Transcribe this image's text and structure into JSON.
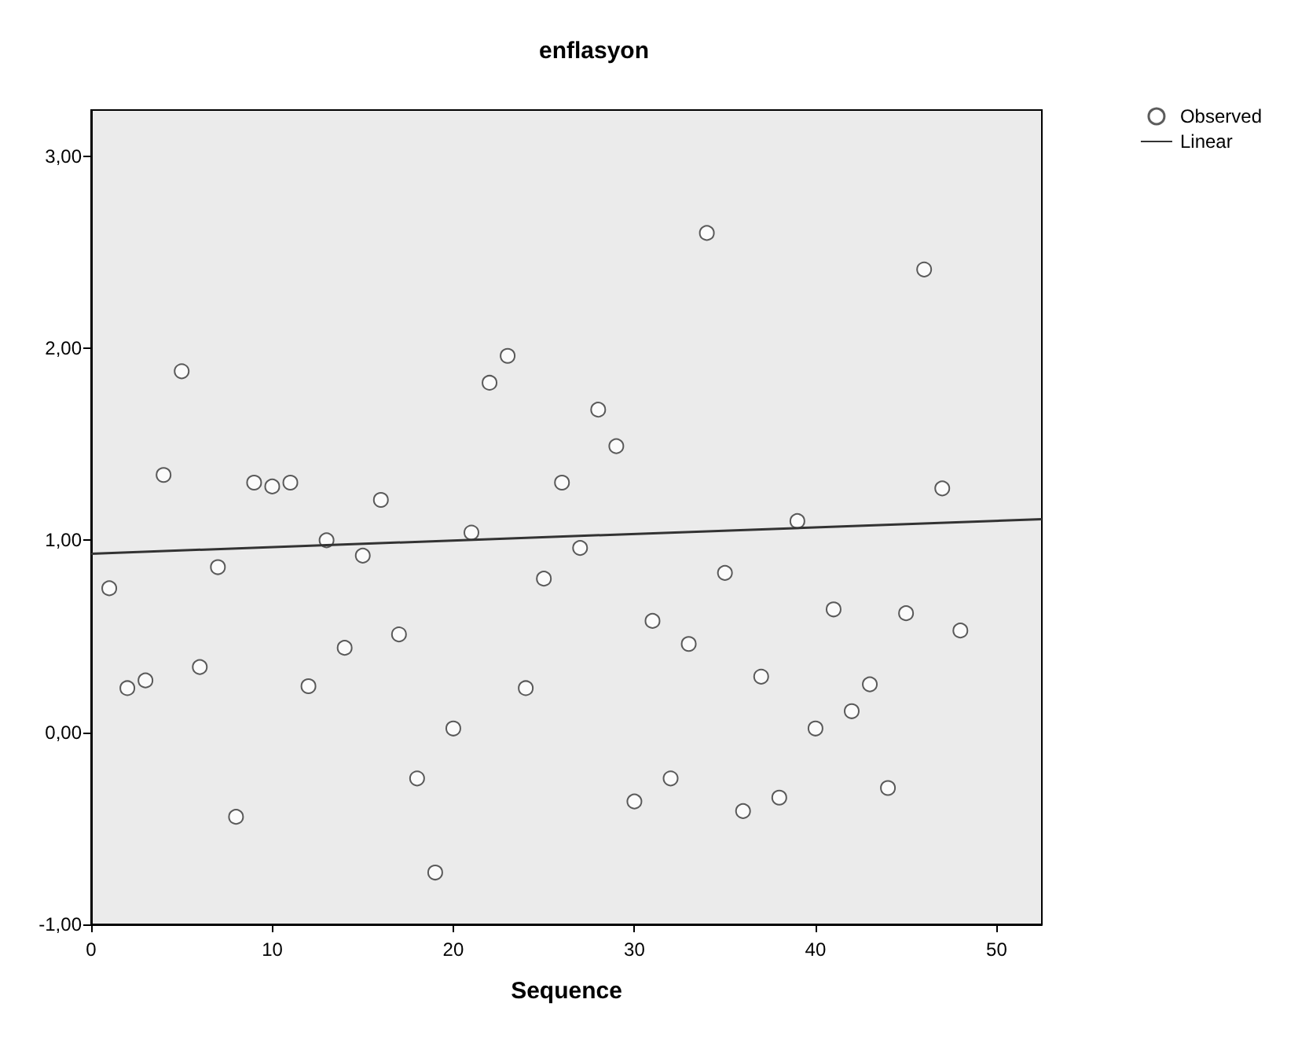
{
  "chart_data": {
    "type": "scatter",
    "title": "enflasyon",
    "xlabel": "Sequence",
    "x": [
      1,
      2,
      3,
      4,
      5,
      6,
      7,
      8,
      9,
      10,
      11,
      12,
      13,
      14,
      15,
      16,
      17,
      18,
      19,
      20,
      21,
      22,
      23,
      24,
      25,
      26,
      27,
      28,
      29,
      30,
      31,
      32,
      33,
      34,
      35,
      36,
      37,
      38,
      39,
      40,
      41,
      42,
      43,
      44,
      45,
      46,
      47,
      48
    ],
    "series": [
      {
        "name": "Observed",
        "color": "#333333",
        "marker": "circle",
        "values": [
          0.75,
          0.23,
          0.27,
          1.34,
          1.88,
          0.34,
          0.86,
          -0.44,
          1.3,
          1.28,
          1.3,
          0.24,
          1.0,
          0.44,
          0.92,
          1.21,
          0.51,
          -0.24,
          -0.73,
          0.02,
          1.04,
          1.82,
          1.96,
          0.23,
          0.8,
          1.3,
          0.96,
          1.68,
          1.49,
          -0.36,
          0.58,
          -0.24,
          0.46,
          2.6,
          0.83,
          -0.41,
          0.29,
          -0.34,
          1.1,
          0.02,
          0.64,
          0.11,
          0.25,
          -0.29,
          0.62,
          2.41,
          1.27,
          0.53
        ]
      },
      {
        "name": "Linear",
        "type": "line",
        "color": "#333333",
        "marker": "none",
        "line_style": "solid",
        "x": [
          0,
          52.5
        ],
        "values": [
          0.93,
          1.11
        ]
      }
    ],
    "xlim": [
      0,
      52.5
    ],
    "xticks": [
      0,
      10,
      20,
      30,
      40,
      50
    ],
    "ylim": [
      -1,
      3.24
    ],
    "yticks": [
      {
        "value": -1,
        "label": "-1,00"
      },
      {
        "value": 0,
        "label": "0,00"
      },
      {
        "value": 1,
        "label": "1,00"
      },
      {
        "value": 2,
        "label": "2,00"
      },
      {
        "value": 3,
        "label": "3,00"
      }
    ],
    "grid": false,
    "legend": "top right"
  }
}
